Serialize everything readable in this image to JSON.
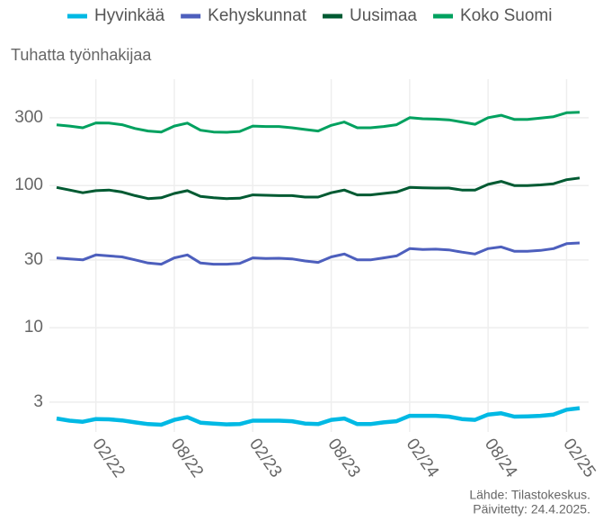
{
  "chart_data": {
    "type": "line",
    "y_axis_label": "Tuhatta työnhakijaa",
    "source": "Lähde: Tilastokeskus.",
    "updated": "Päivitetty: 24.4.2025.",
    "categories": [
      null,
      null,
      null,
      "02/22",
      null,
      null,
      null,
      null,
      null,
      "08/22",
      null,
      null,
      null,
      null,
      null,
      "02/23",
      null,
      null,
      null,
      null,
      null,
      "08/23",
      null,
      null,
      null,
      null,
      null,
      "02/24",
      null,
      null,
      null,
      null,
      null,
      "08/24",
      null,
      null,
      null,
      null,
      null,
      "02/25",
      null
    ],
    "series": [
      {
        "name": "Hyvinkää",
        "color": "#00b9e4",
        "values": [
          2.3,
          2.22,
          2.18,
          2.28,
          2.27,
          2.23,
          2.16,
          2.1,
          2.08,
          2.25,
          2.35,
          2.15,
          2.12,
          2.09,
          2.1,
          2.22,
          2.22,
          2.22,
          2.2,
          2.12,
          2.1,
          2.25,
          2.3,
          2.1,
          2.1,
          2.16,
          2.2,
          2.4,
          2.4,
          2.4,
          2.37,
          2.28,
          2.25,
          2.45,
          2.5,
          2.37,
          2.38,
          2.4,
          2.45,
          2.65,
          2.72
        ]
      },
      {
        "name": "Kehyskunnat",
        "color": "#4d5fbd",
        "values": [
          31,
          30.5,
          30,
          32.5,
          32,
          31.5,
          30,
          28.5,
          28,
          31,
          32.5,
          28.5,
          28,
          28,
          28.3,
          31,
          30.7,
          30.8,
          30.5,
          29.5,
          28.8,
          31.5,
          33,
          30,
          30,
          31,
          32,
          36,
          35.5,
          35.7,
          35.3,
          34,
          33,
          36,
          37,
          34.5,
          34.5,
          35,
          36,
          39,
          39.5
        ]
      },
      {
        "name": "Uusimaa",
        "color": "#005a32",
        "values": [
          97,
          93,
          89,
          92,
          93,
          90,
          85,
          81,
          82,
          88,
          92,
          84,
          82,
          81,
          81.5,
          86,
          85.5,
          85,
          85,
          83,
          83,
          89,
          93,
          86,
          86,
          88,
          90,
          97,
          96.5,
          96,
          96,
          93,
          93,
          102,
          107,
          100,
          100,
          101,
          103,
          110,
          113
        ]
      },
      {
        "name": "Koko Suomi",
        "color": "#00a15f",
        "values": [
          267,
          262,
          255,
          276,
          275,
          268,
          252,
          242,
          238,
          262,
          275,
          245,
          238,
          237,
          240,
          262,
          260,
          260,
          255,
          248,
          242,
          265,
          280,
          255,
          255,
          260,
          268,
          300,
          295,
          293,
          290,
          280,
          270,
          300,
          312,
          292,
          292,
          298,
          305,
          325,
          328
        ]
      }
    ],
    "log_y": true,
    "ylim": [
      1.85,
      560
    ],
    "yticks": [
      3,
      10,
      30,
      100,
      300
    ],
    "grid": true,
    "legend": "top"
  }
}
